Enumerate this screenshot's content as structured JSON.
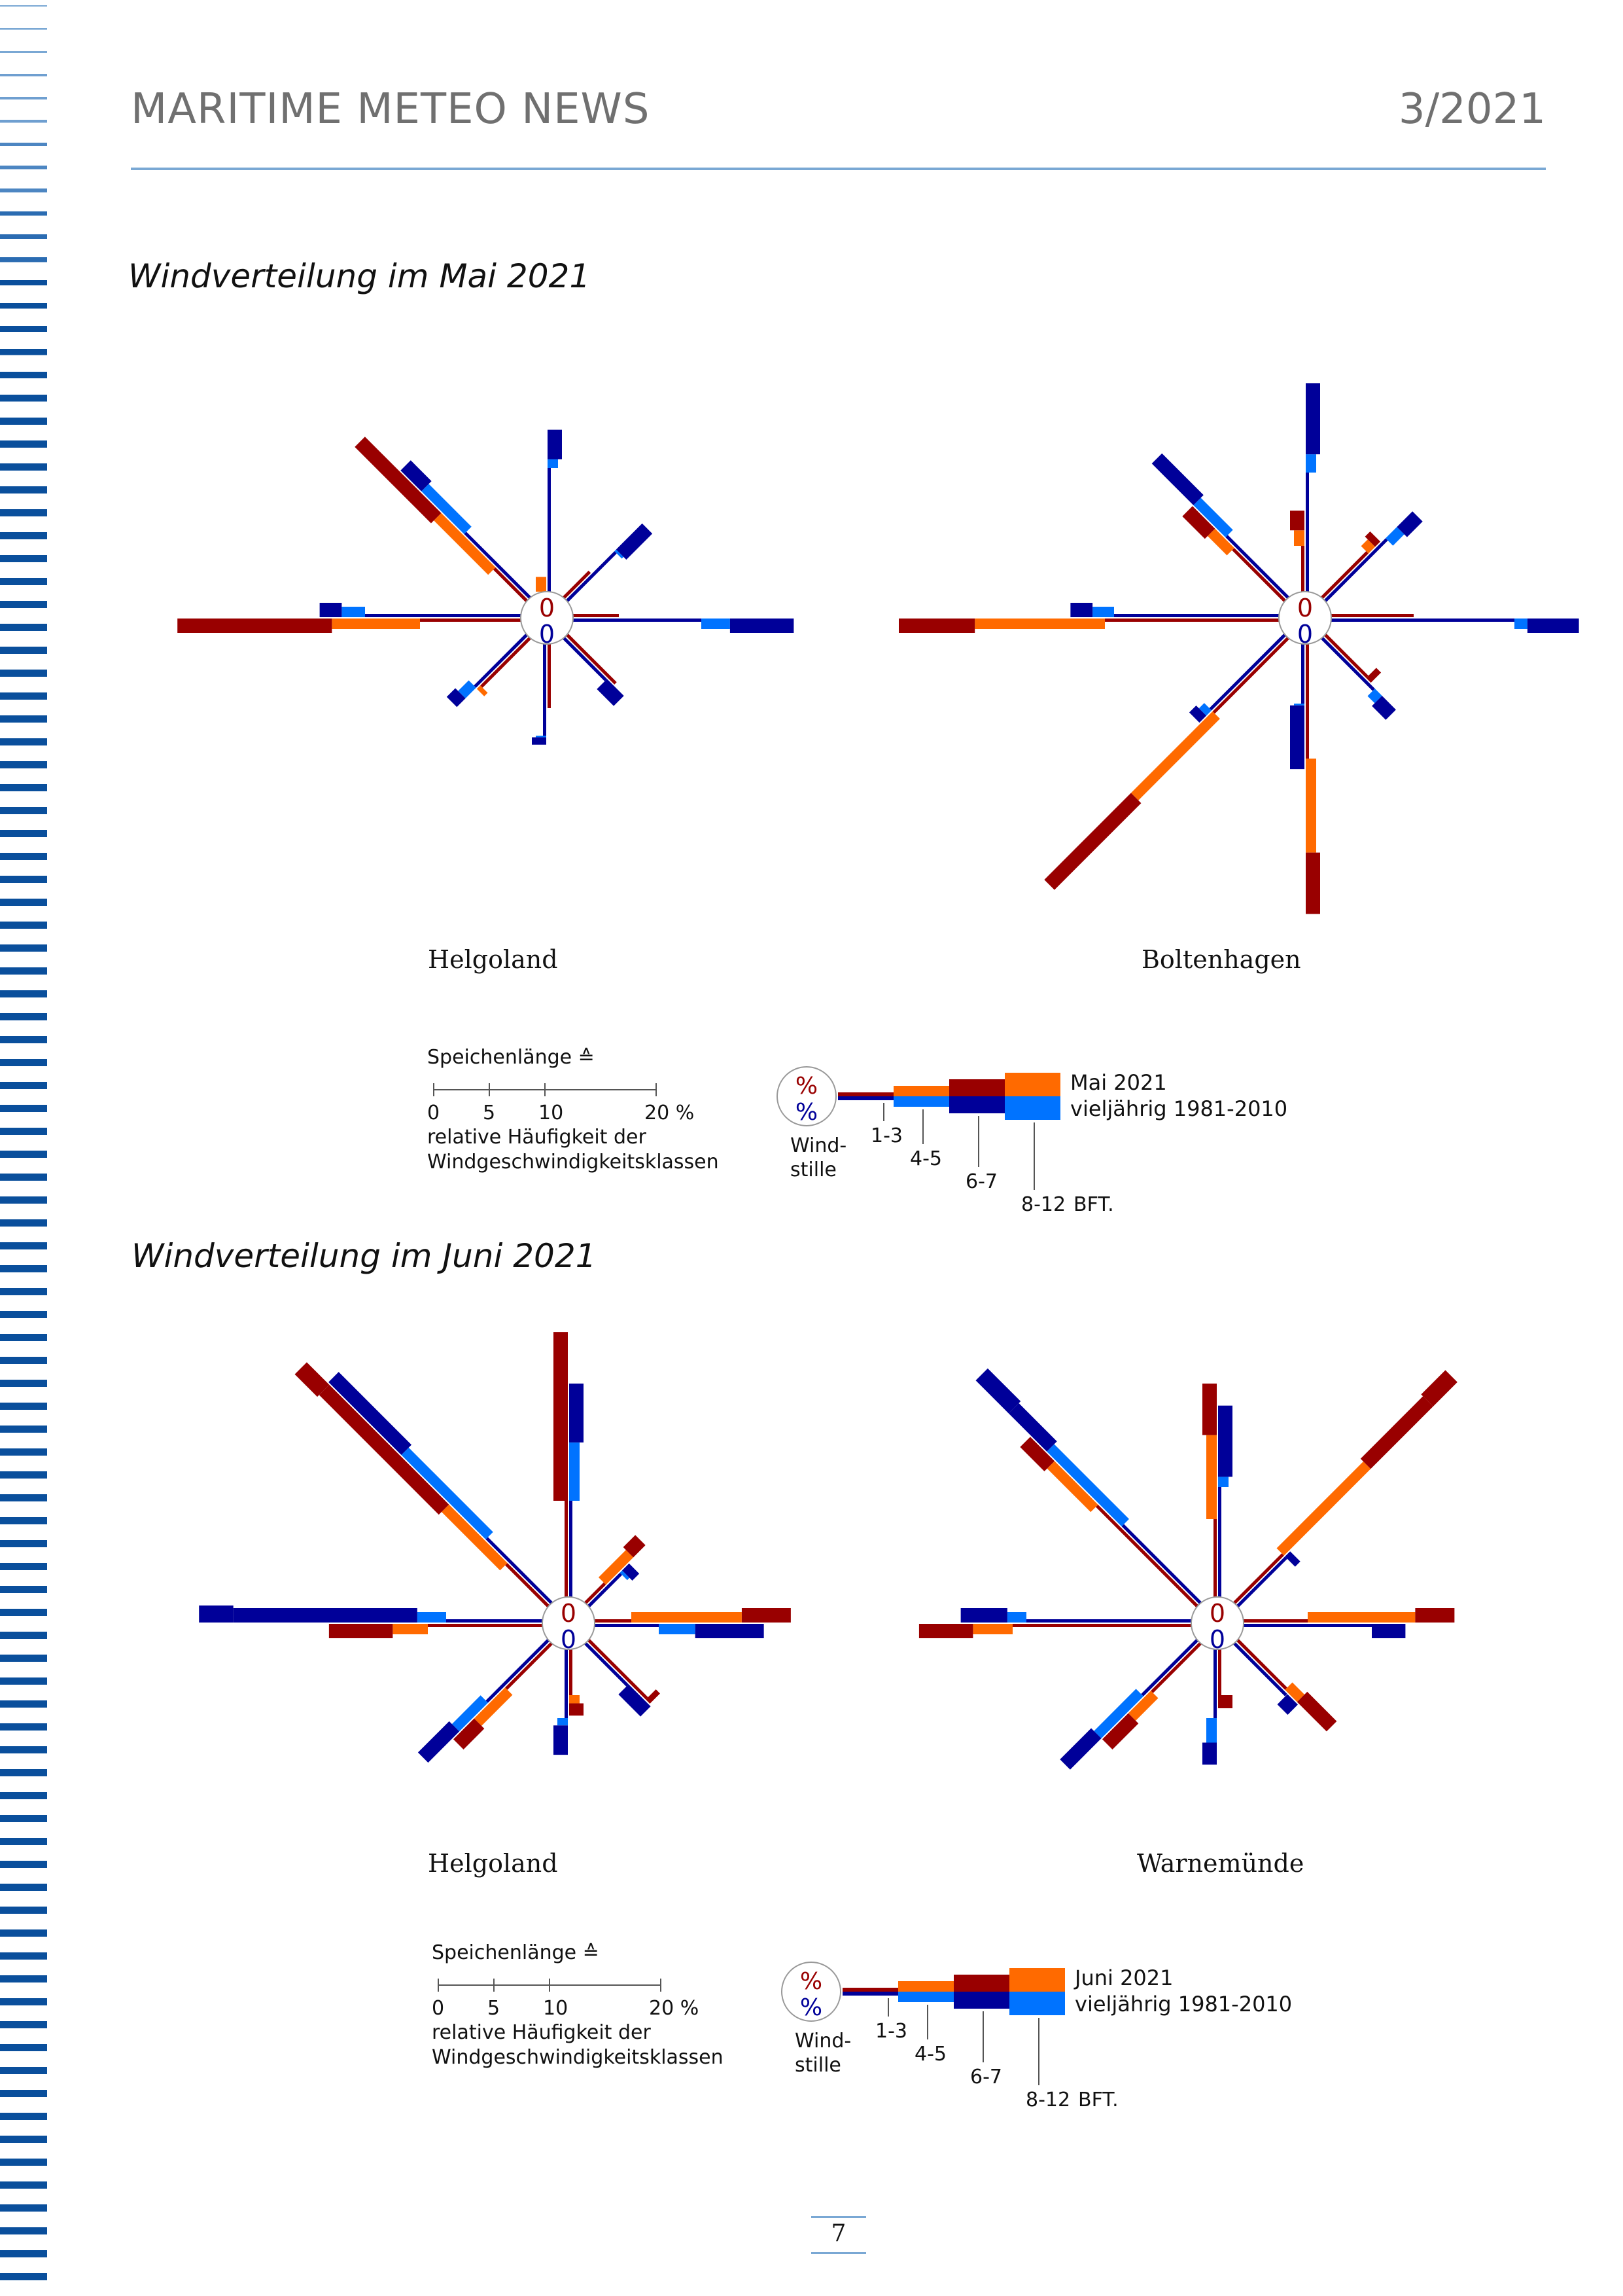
{
  "header": {
    "title": "MARITIME METEO NEWS",
    "issue": "3/2021"
  },
  "sections": [
    {
      "title": "Windverteilung im Mai 2021"
    },
    {
      "title": "Windverteilung im Juni 2021"
    }
  ],
  "legend": {
    "scale_title": "Speichenlänge ≙",
    "scale_ticks": [
      "0",
      "5",
      "10",
      "20 %"
    ],
    "scale_desc_1": "relative Häufigkeit der",
    "scale_desc_2": "Windgeschwindigkeitsklassen",
    "calm_symbol": "%",
    "calm_label_1": "Wind-",
    "calm_label_2": "stille",
    "classes": [
      "1-3",
      "4-5",
      "6-7",
      "8-12"
    ],
    "unit": "BFT.",
    "climatology_label": "vieljährig 1981-2010"
  },
  "legend_current": [
    "Mai 2021",
    "Juni 2021"
  ],
  "colors": {
    "current_light": "#ff6a00",
    "current_dark": "#990000",
    "clim_light": "#0073ff",
    "clim_dark": "#000099",
    "header_rule": "#7aa8d4",
    "stripes": "#0a4f9c"
  },
  "chart_data": [
    {
      "type": "windrose",
      "station": "Helgoland",
      "period": "Mai 2021",
      "calm": {
        "current": "0",
        "climatology": "0"
      },
      "directions": [
        "N",
        "NE",
        "E",
        "SE",
        "S",
        "SW",
        "W",
        "NW"
      ],
      "current": {
        "N": [
          0.0,
          0.6,
          0.0,
          0.0
        ],
        "NE": [
          0.8,
          0.9,
          0.0,
          0.0
        ],
        "E": [
          1.0,
          0.4,
          0.0,
          0.0
        ],
        "SE": [
          1.5,
          2.5,
          0.5,
          0.0
        ],
        "S": [
          1.4,
          2.6,
          0.6,
          0.0
        ],
        "SW": [
          1.5,
          3.0,
          1.5,
          0.0
        ],
        "W": [
          2.2,
          7.7,
          14.0,
          0.0
        ],
        "NW": [
          1.0,
          5.0,
          9.4,
          0.0
        ]
      },
      "climatology": {
        "N": [
          2.7,
          5.4,
          6.6,
          0.0
        ],
        "NE": [
          1.5,
          2.9,
          4.4,
          0.0
        ],
        "E": [
          2.8,
          6.4,
          9.0,
          0.0
        ],
        "SE": [
          1.3,
          2.4,
          3.4,
          0.0
        ],
        "S": [
          2.0,
          3.8,
          4.1,
          0.0
        ],
        "SW": [
          1.6,
          3.6,
          4.1,
          0.0
        ],
        "W": [
          3.4,
          7.3,
          8.2,
          0.0
        ],
        "NW": [
          2.0,
          6.2,
          7.4,
          0.0
        ]
      }
    },
    {
      "type": "windrose",
      "station": "Boltenhagen",
      "period": "Mai 2021",
      "calm": {
        "current": "0",
        "climatology": "0"
      },
      "directions": [
        "N",
        "NE",
        "E",
        "SE",
        "S",
        "SW",
        "W",
        "NW"
      ],
      "current": {
        "N": [
          1.0,
          2.5,
          3.3,
          0.0
        ],
        "NE": [
          1.4,
          3.0,
          3.3,
          0.0
        ],
        "E": [
          1.8,
          2.4,
          2.4,
          0.0
        ],
        "SE": [
          1.3,
          2.3,
          2.7,
          0.0
        ],
        "S": [
          2.5,
          8.5,
          11.0,
          0.0
        ],
        "SW": [
          2.3,
          9.0,
          14.0,
          0.0
        ],
        "W": [
          3.8,
          12.4,
          15.5,
          0.0
        ],
        "NW": [
          1.6,
          4.1,
          5.4,
          0.0
        ]
      },
      "climatology": {
        "N": [
          2.6,
          5.6,
          8.5,
          0.0
        ],
        "NE": [
          1.9,
          4.2,
          5.1,
          0.0
        ],
        "E": [
          4.0,
          8.0,
          10.1,
          0.0
        ],
        "SE": [
          1.6,
          3.4,
          4.2,
          0.0
        ],
        "S": [
          1.3,
          2.5,
          5.1,
          0.0
        ],
        "SW": [
          2.3,
          4.6,
          5.0,
          0.0
        ],
        "W": [
          3.6,
          7.6,
          8.5,
          0.0
        ],
        "NW": [
          1.9,
          5.4,
          7.8,
          0.0
        ]
      }
    },
    {
      "type": "windrose",
      "station": "Helgoland",
      "period": "Juni 2021",
      "calm": {
        "current": "0",
        "climatology": "0"
      },
      "directions": [
        "N",
        "NE",
        "E",
        "SE",
        "S",
        "SW",
        "W",
        "NW"
      ],
      "current": {
        "N": [
          2.1,
          2.3,
          10.8,
          0.0
        ],
        "NE": [
          0.6,
          2.7,
          3.4,
          0.0
        ],
        "E": [
          0.8,
          6.0,
          8.0,
          0.0
        ],
        "SE": [
          1.8,
          2.9,
          3.6,
          0.0
        ],
        "S": [
          1.0,
          2.2,
          2.7,
          0.0
        ],
        "SW": [
          1.4,
          4.4,
          5.6,
          0.0
        ],
        "W": [
          2.5,
          6.1,
          8.7,
          0.0
        ],
        "NW": [
          1.3,
          5.8,
          12.7,
          14.0
        ]
      },
      "climatology": {
        "N": [
          2.1,
          6.3,
          8.7,
          0.0
        ],
        "NE": [
          1.0,
          2.0,
          2.4,
          0.0
        ],
        "E": [
          1.4,
          4.1,
          6.9,
          0.0
        ],
        "SE": [
          1.3,
          2.4,
          3.7,
          0.0
        ],
        "S": [
          1.5,
          3.1,
          4.3,
          0.0
        ],
        "SW": [
          1.9,
          5.2,
          7.0,
          0.0
        ],
        "W": [
          2.1,
          5.1,
          12.6,
          14.0
        ],
        "NW": [
          2.0,
          8.6,
          12.8,
          0.0
        ]
      }
    },
    {
      "type": "windrose",
      "station": "Warnemünde",
      "period": "Juni 2021",
      "calm": {
        "current": "0",
        "climatology": "0"
      },
      "directions": [
        "N",
        "NE",
        "E",
        "SE",
        "S",
        "SW",
        "W",
        "NW"
      ],
      "current": {
        "N": [
          1.7,
          6.6,
          8.7,
          0.0
        ],
        "NE": [
          1.5,
          7.8,
          11.4,
          12.8
        ],
        "E": [
          1.4,
          7.0,
          8.6,
          0.0
        ],
        "SE": [
          1.5,
          3.5,
          5.2,
          0.0
        ],
        "S": [
          1.0,
          1.8,
          2.4,
          0.0
        ],
        "SW": [
          1.5,
          4.1,
          5.6,
          0.0
        ],
        "W": [
          3.9,
          8.9,
          11.1,
          0.0
        ],
        "NW": [
          3.1,
          8.3,
          9.7,
          0.0
        ]
      },
      "climatology": {
        "N": [
          2.4,
          4.9,
          7.8,
          0.0
        ],
        "NE": [
          1.5,
          2.8,
          3.1,
          0.0
        ],
        "E": [
          2.8,
          4.6,
          6.6,
          0.0
        ],
        "SE": [
          1.6,
          3.0,
          3.6,
          0.0
        ],
        "S": [
          1.5,
          3.8,
          4.7,
          0.0
        ],
        "SW": [
          1.7,
          5.6,
          7.4,
          0.0
        ],
        "W": [
          3.6,
          7.5,
          9.4,
          0.0
        ],
        "NW": [
          2.4,
          8.8,
          11.0,
          12.9
        ]
      }
    }
  ]
}
